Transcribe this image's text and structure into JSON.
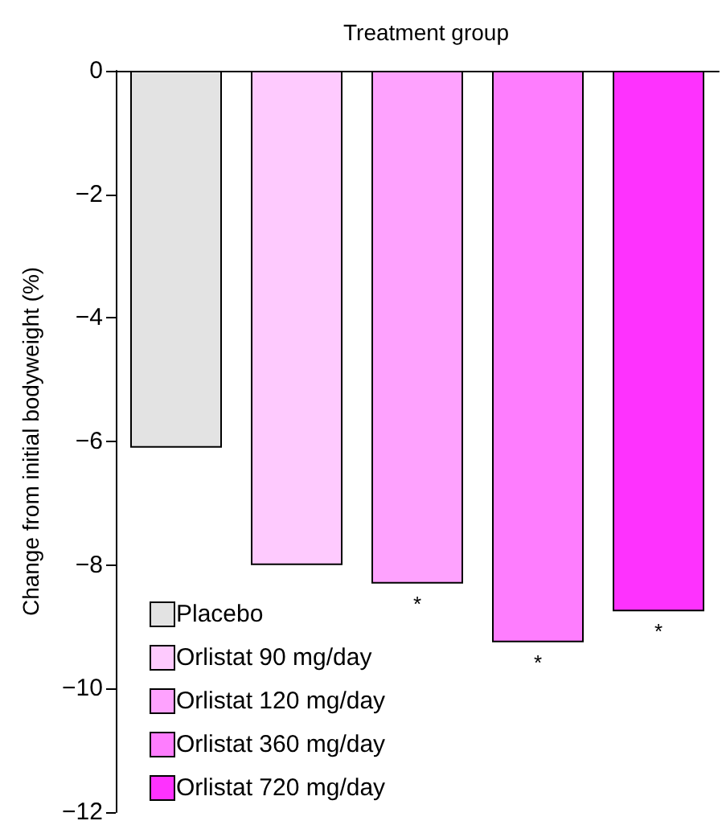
{
  "chart_data": {
    "type": "bar",
    "title": "Treatment group",
    "ylabel": "Change from initial bodyweight (%)",
    "categories": [
      null,
      null,
      null,
      null,
      null
    ],
    "series": [
      {
        "name": "Placebo",
        "color": "#e3e3e3",
        "values": [
          -6.1,
          null,
          null,
          null,
          null
        ]
      },
      {
        "name": "Orlistat 90 mg/day",
        "color": "#fecafe",
        "values": [
          null,
          -8.0,
          null,
          null,
          null
        ]
      },
      {
        "name": "Orlistat 120 mg/day",
        "color": "#fea2fe",
        "values": [
          null,
          null,
          -8.3,
          null,
          null
        ]
      },
      {
        "name": "Orlistat 360 mg/day",
        "color": "#fe7dfe",
        "values": [
          null,
          null,
          null,
          -9.25,
          null
        ]
      },
      {
        "name": "Orlistat 720 mg/day",
        "color": "#fe32fe",
        "values": [
          null,
          null,
          null,
          null,
          -8.75
        ]
      }
    ],
    "stacked": true,
    "ylim": [
      -12,
      0
    ],
    "yticks": [
      {
        "value": -12,
        "label": "−12"
      },
      {
        "value": -10,
        "label": "−10"
      },
      {
        "value": -8,
        "label": "−8"
      },
      {
        "value": -6,
        "label": "−6"
      },
      {
        "value": -4,
        "label": "−4"
      },
      {
        "value": -2,
        "label": "−2"
      },
      0
    ],
    "tick_labels": "y",
    "legend": "bottom left",
    "annotations": [
      "*",
      "*",
      "*"
    ]
  }
}
